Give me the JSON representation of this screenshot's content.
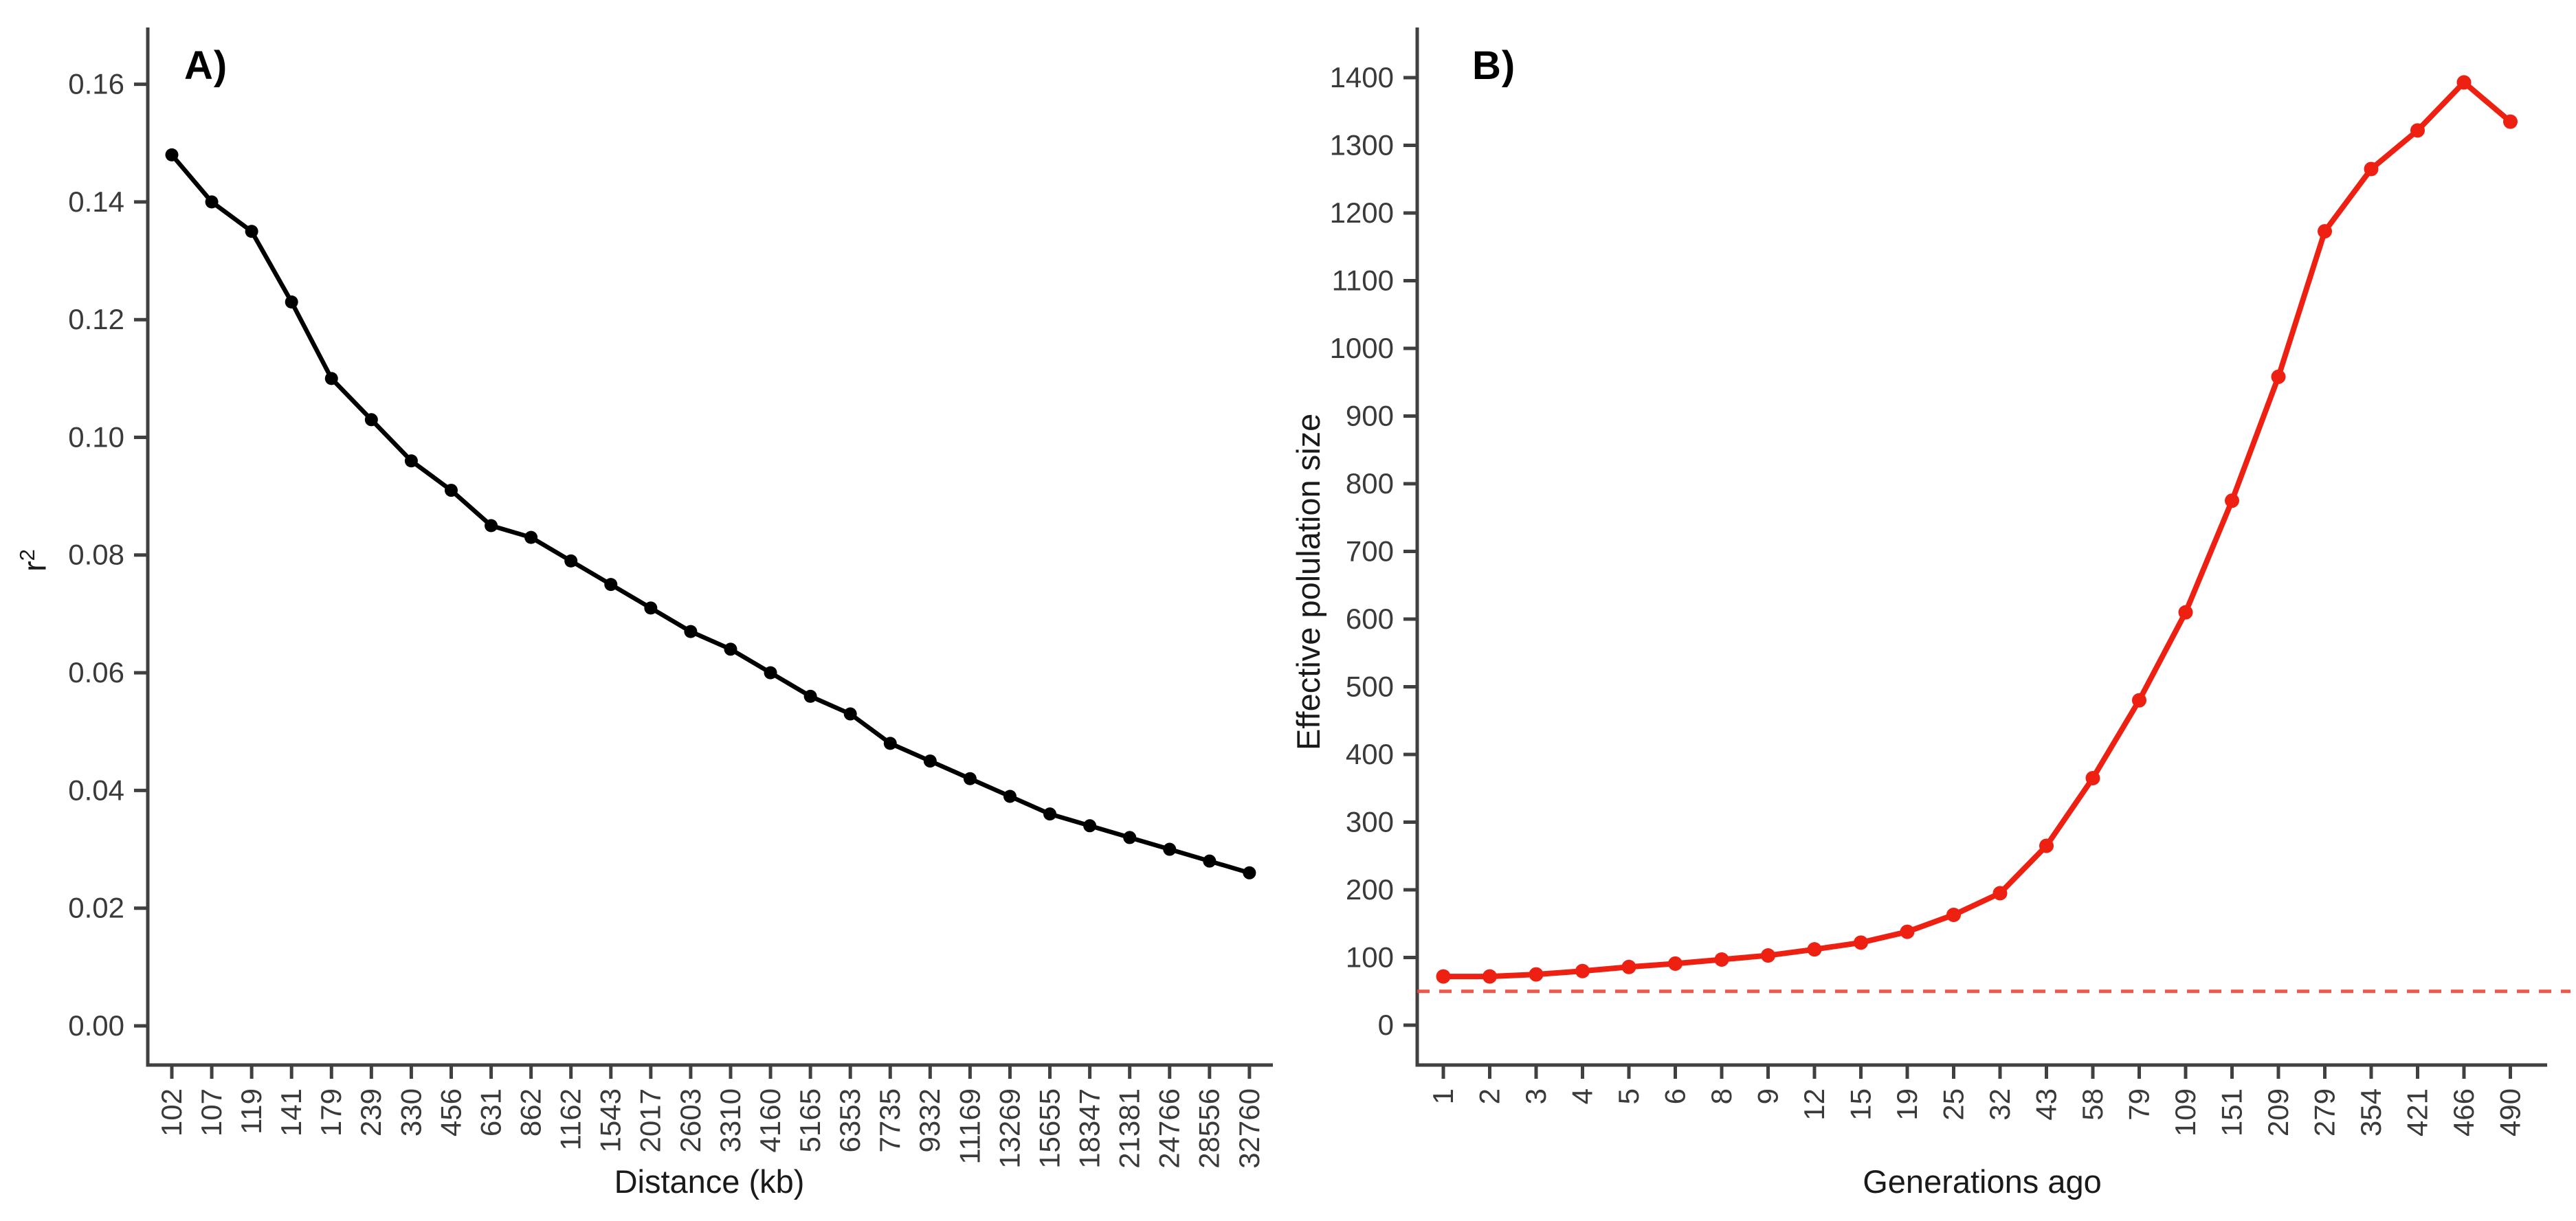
{
  "figure": {
    "background": "#ffffff"
  },
  "panels": {
    "a": {
      "label": "A)",
      "x_title": "Distance (kb)",
      "y_title_base": "r",
      "y_title_sup": "2"
    },
    "b": {
      "label": "B)",
      "x_title": "Generations ago",
      "y_title": "Effective polulation size"
    }
  },
  "axis_style": {
    "axis_color": "#404040",
    "tick_label_color": "#3a3a3a",
    "tick_label_size": 42
  },
  "chart_data": [
    {
      "id": "panel-a",
      "type": "line",
      "panel_label": "A)",
      "xlabel": "Distance (kb)",
      "ylabel": "r^2",
      "categories": [
        "102",
        "107",
        "119",
        "141",
        "179",
        "239",
        "330",
        "456",
        "631",
        "862",
        "1162",
        "1543",
        "2017",
        "2603",
        "3310",
        "4160",
        "5165",
        "6353",
        "7735",
        "9332",
        "11169",
        "13269",
        "15655",
        "18347",
        "21381",
        "24766",
        "28556",
        "32760"
      ],
      "values": [
        0.148,
        0.14,
        0.135,
        0.123,
        0.11,
        0.103,
        0.096,
        0.091,
        0.085,
        0.083,
        0.079,
        0.075,
        0.071,
        0.067,
        0.064,
        0.06,
        0.056,
        0.053,
        0.048,
        0.045,
        0.042,
        0.039,
        0.036,
        0.034,
        0.032,
        0.03,
        0.028,
        0.026
      ],
      "y_ticks": [
        0.0,
        0.02,
        0.04,
        0.06,
        0.08,
        0.1,
        0.12,
        0.14,
        0.16
      ],
      "y_tick_labels": [
        "0.00",
        "0.02",
        "0.04",
        "0.06",
        "0.08",
        "0.10",
        "0.12",
        "0.14",
        "0.16"
      ],
      "ylim": [
        0,
        0.16
      ],
      "grid": false,
      "legend": "none",
      "marker": "filled-circle",
      "line_color": "#000000",
      "marker_color": "#000000"
    },
    {
      "id": "panel-b",
      "type": "line",
      "panel_label": "B)",
      "xlabel": "Generations ago",
      "ylabel": "Effective polulation size",
      "categories": [
        "1",
        "2",
        "3",
        "4",
        "5",
        "6",
        "8",
        "9",
        "12",
        "15",
        "19",
        "25",
        "32",
        "43",
        "58",
        "79",
        "109",
        "151",
        "209",
        "279",
        "354",
        "421",
        "466",
        "490"
      ],
      "values": [
        72,
        72,
        75,
        80,
        86,
        91,
        97,
        103,
        112,
        122,
        138,
        163,
        195,
        265,
        365,
        480,
        610,
        775,
        958,
        1173,
        1265,
        1322,
        1393,
        1335
      ],
      "y_ticks": [
        0,
        100,
        200,
        300,
        400,
        500,
        600,
        700,
        800,
        900,
        1000,
        1100,
        1200,
        1300,
        1400
      ],
      "y_tick_labels": [
        "0",
        "100",
        "200",
        "300",
        "400",
        "500",
        "600",
        "700",
        "800",
        "900",
        "1000",
        "1100",
        "1200",
        "1300",
        "1400"
      ],
      "ylim": [
        0,
        1400
      ],
      "grid": false,
      "legend": "none",
      "marker": "filled-circle",
      "line_color": "#ee2012",
      "marker_color": "#ee2012",
      "annotations": [
        {
          "type": "dashed_hline",
          "y": 50,
          "color": "#ec4538"
        }
      ]
    }
  ]
}
